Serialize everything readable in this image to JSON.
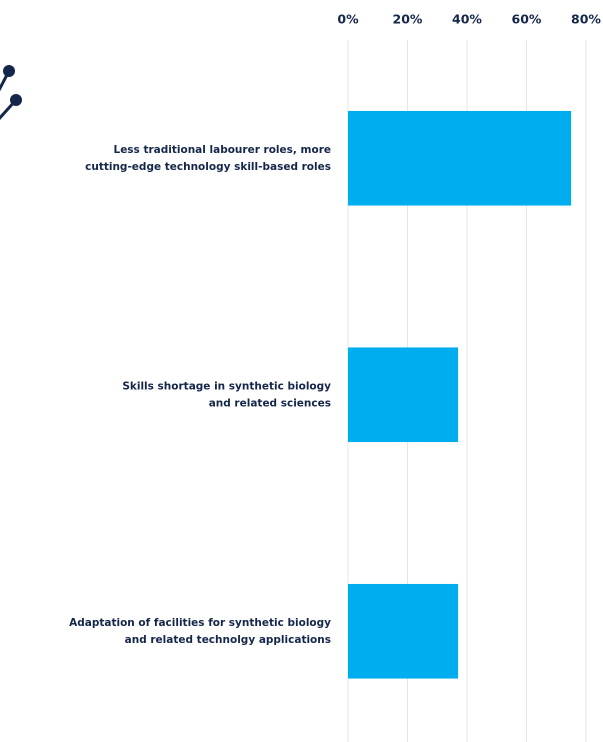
{
  "chart_data": {
    "type": "bar",
    "orientation": "horizontal",
    "categories": [
      [
        "Less traditional labourer roles, more",
        "cutting-edge technology skill-based roles"
      ],
      [
        "Skills shortage in synthetic biology",
        "and related sciences"
      ],
      [
        "Adaptation of facilities for synthetic biology",
        "and related technolgy applications"
      ]
    ],
    "values": [
      75,
      37,
      37
    ],
    "color": "#00aeef",
    "xlim": [
      0,
      85
    ],
    "xticks": [
      {
        "value": 0,
        "label": "0%"
      },
      {
        "value": 20,
        "label": "20%"
      },
      {
        "value": 40,
        "label": "40%"
      },
      {
        "value": 60,
        "label": "60%"
      },
      {
        "value": 80,
        "label": "80%"
      }
    ],
    "grid": true
  }
}
